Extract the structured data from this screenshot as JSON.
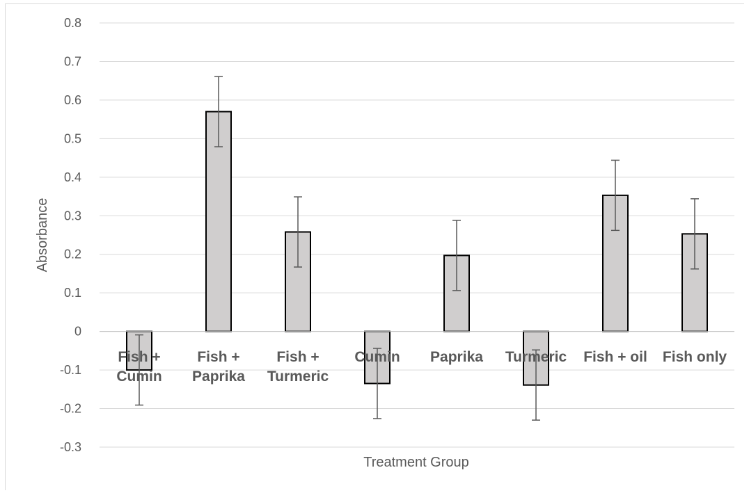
{
  "chart_data": {
    "type": "bar",
    "title": "",
    "xlabel": "Treatment Group",
    "ylabel": "Absorbance",
    "ylim": [
      -0.3,
      0.8
    ],
    "yticks": [
      "0.8",
      "0.7",
      "0.6",
      "0.5",
      "0.4",
      "0.3",
      "0.2",
      "0.1",
      "0",
      "-0.1",
      "-0.2",
      "-0.3"
    ],
    "grid": true,
    "legend": "none",
    "categories": [
      [
        "Fish +",
        "Cumin"
      ],
      [
        "Fish +",
        "Paprika"
      ],
      [
        "Fish +",
        "Turmeric"
      ],
      [
        "Cumin"
      ],
      [
        "Paprika"
      ],
      [
        "Turmeric"
      ],
      [
        "Fish + oil"
      ],
      [
        "Fish only"
      ]
    ],
    "values": [
      -0.1,
      0.57,
      0.258,
      -0.135,
      0.197,
      -0.139,
      0.353,
      0.253
    ],
    "error_bars": [
      0.091,
      0.091,
      0.091,
      0.091,
      0.091,
      0.091,
      0.091,
      0.091
    ],
    "colors": {
      "bar_fill": "#d0cece",
      "bar_stroke": "#000000",
      "gridline": "#d9d9d9",
      "error_bar": "#595959",
      "text": "#595959"
    }
  }
}
